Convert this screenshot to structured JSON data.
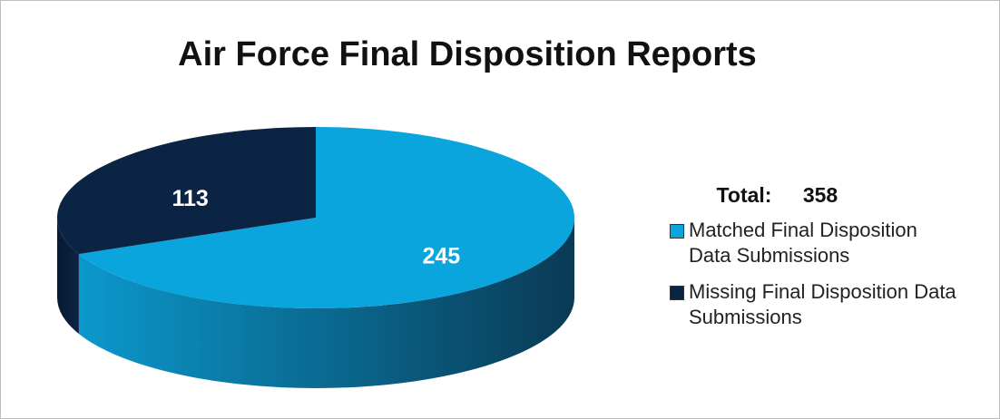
{
  "chart_data": {
    "type": "pie3d",
    "title": "Air Force Final Disposition Reports",
    "total_label": "Total:",
    "total": 358,
    "categories": [
      "Matched Final Disposition Data Submissions",
      "Missing Final Disposition Data Submissions"
    ],
    "values": [
      245,
      113
    ],
    "colors": [
      "#0aa5dc",
      "#0c2444"
    ],
    "side_colors": [
      [
        "#0b98cc",
        "#0a3a55"
      ],
      [
        "#081a33",
        "#0c2444"
      ]
    ],
    "legend": "right"
  }
}
